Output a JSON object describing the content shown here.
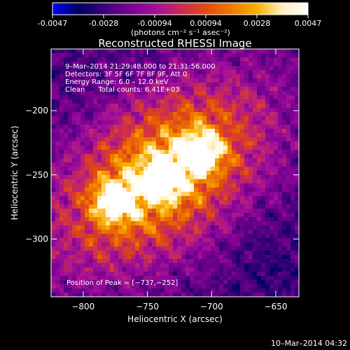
{
  "colors": {
    "background": "#000000",
    "text": "#ffffff",
    "colormap": [
      "#0000ff",
      "#000060",
      "#3a0078",
      "#7a0090",
      "#a0109a",
      "#c82a5a",
      "#e04a10",
      "#f07a00",
      "#f8b000",
      "#fff0c0",
      "#ffffff"
    ]
  },
  "colorbar": {
    "ticks": [
      "-0.0047",
      "-0.0028",
      "-0.00094",
      "0.00094",
      "0.0028",
      "0.0047"
    ],
    "units": "(photons cm⁻² s⁻¹ asec⁻²)",
    "range": [
      -0.0047,
      0.0047
    ]
  },
  "chart_data": {
    "type": "heatmap",
    "title": "Reconstructed RHESSI Image",
    "xlabel": "Heliocentric X (arcsec)",
    "ylabel": "Heliocentric Y (arcsec)",
    "xlim": [
      -825,
      -632
    ],
    "ylim": [
      -345,
      -152
    ],
    "xticks": [
      {
        "value": -800,
        "label": "−800"
      },
      {
        "value": -750,
        "label": "−750"
      },
      {
        "value": -700,
        "label": "−700"
      },
      {
        "value": -650,
        "label": "−650"
      }
    ],
    "yticks": [
      {
        "value": -200,
        "label": "−200"
      },
      {
        "value": -250,
        "label": "−250"
      },
      {
        "value": -300,
        "label": "−300"
      }
    ],
    "sources": [
      {
        "x": -737,
        "y": -252,
        "intensity": 1.0
      },
      {
        "x": -708,
        "y": -232,
        "intensity": 0.92
      },
      {
        "x": -775,
        "y": -270,
        "intensity": 0.9
      }
    ],
    "annotations": [
      "9–Mar–2014 21:29:48.000 to 21:31:56.000",
      "Detectors: 3F 5F 6F 7F 8F 9F, Att 0",
      "Energy Range: 6.0 – 12.0 keV",
      "Clean      Total counts: 6.41E+03"
    ],
    "peak_label": "Position of Peak = [−737,−252]",
    "grid": false
  },
  "footer": {
    "timestamp": "10–Mar–2014 04:32"
  }
}
